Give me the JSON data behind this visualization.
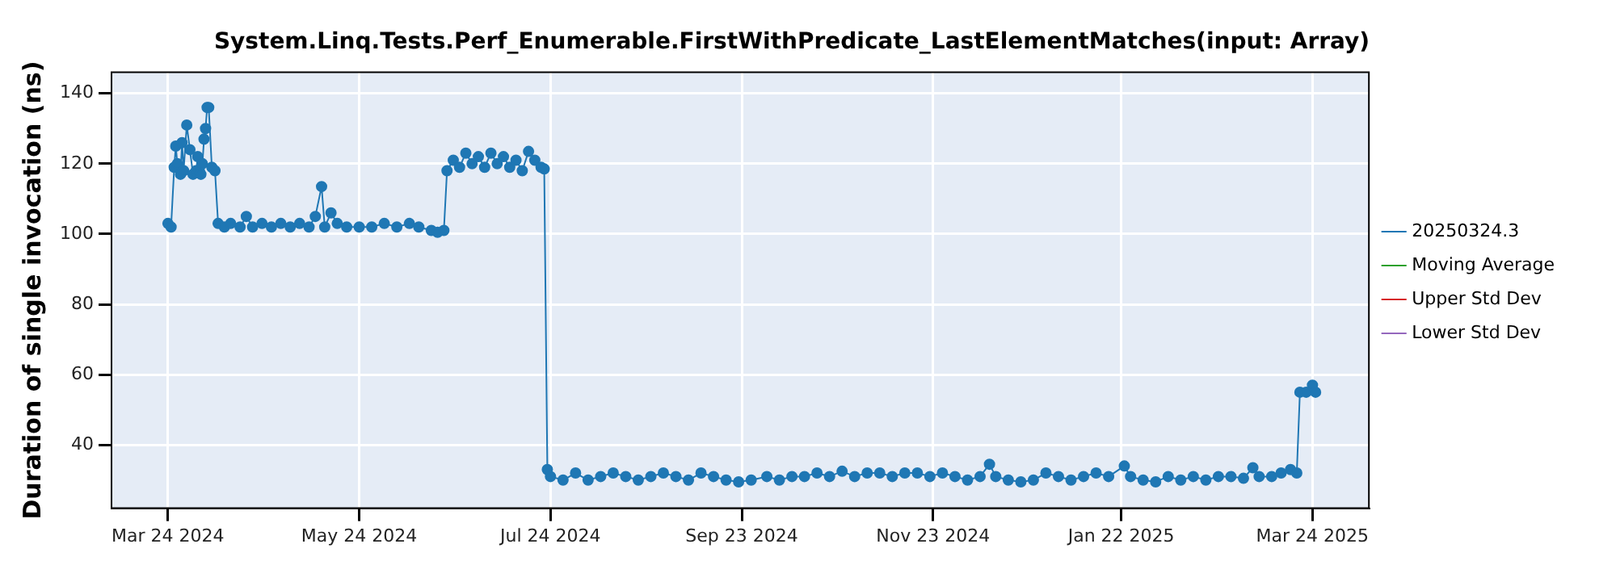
{
  "chart_data": {
    "type": "line",
    "title": "System.Linq.Tests.Perf_Enumerable.FirstWithPredicate_LastElementMatches(input: Array)",
    "ylabel": "Duration of single invocation (ns)",
    "xlim": [
      "2024-03-06",
      "2025-04-11"
    ],
    "xticks": [
      {
        "value": "2024-03-24",
        "label": "Mar 24 2024"
      },
      {
        "value": "2024-05-24",
        "label": "May 24 2024"
      },
      {
        "value": "2024-07-24",
        "label": "Jul 24 2024"
      },
      {
        "value": "2024-09-23",
        "label": "Sep 23 2024"
      },
      {
        "value": "2024-11-23",
        "label": "Nov 23 2024"
      },
      {
        "value": "2025-01-22",
        "label": "Jan 22 2025"
      },
      {
        "value": "2025-03-24",
        "label": "Mar 24 2025"
      }
    ],
    "ylim": [
      22,
      146
    ],
    "yticks": [
      40,
      60,
      80,
      100,
      120,
      140
    ],
    "grid": true,
    "legend": "right",
    "marker": "circle",
    "line_style": "solid",
    "series": [
      {
        "name": "20250324.3",
        "color": "#1f77b4",
        "x": [
          "2024-03-24",
          "2024-03-25",
          "2024-03-26",
          "2024-03-26T12:00",
          "2024-03-27",
          "2024-03-28",
          "2024-03-28T12:00",
          "2024-03-29",
          "2024-03-30",
          "2024-03-31",
          "2024-04-01",
          "2024-04-02",
          "2024-04-02T12:00",
          "2024-04-03",
          "2024-04-03T12:00",
          "2024-04-04",
          "2024-04-04T12:00",
          "2024-04-05",
          "2024-04-05T12:00",
          "2024-04-06",
          "2024-04-07",
          "2024-04-08",
          "2024-04-09",
          "2024-04-11",
          "2024-04-13",
          "2024-04-16",
          "2024-04-18",
          "2024-04-20",
          "2024-04-23",
          "2024-04-26",
          "2024-04-29",
          "2024-05-02",
          "2024-05-05",
          "2024-05-08",
          "2024-05-10",
          "2024-05-12",
          "2024-05-13",
          "2024-05-15",
          "2024-05-17",
          "2024-05-20",
          "2024-05-24",
          "2024-05-28",
          "2024-06-01",
          "2024-06-05",
          "2024-06-09",
          "2024-06-12",
          "2024-06-16",
          "2024-06-18",
          "2024-06-20",
          "2024-06-21",
          "2024-06-23",
          "2024-06-25",
          "2024-06-27",
          "2024-06-29",
          "2024-07-01",
          "2024-07-03",
          "2024-07-05",
          "2024-07-07",
          "2024-07-09",
          "2024-07-11",
          "2024-07-13",
          "2024-07-15",
          "2024-07-17",
          "2024-07-19",
          "2024-07-21",
          "2024-07-22",
          "2024-07-23",
          "2024-07-24",
          "2024-07-28",
          "2024-08-01",
          "2024-08-05",
          "2024-08-09",
          "2024-08-13",
          "2024-08-17",
          "2024-08-21",
          "2024-08-25",
          "2024-08-29",
          "2024-09-02",
          "2024-09-06",
          "2024-09-10",
          "2024-09-14",
          "2024-09-18",
          "2024-09-22",
          "2024-09-26",
          "2024-10-01",
          "2024-10-05",
          "2024-10-09",
          "2024-10-13",
          "2024-10-17",
          "2024-10-21",
          "2024-10-25",
          "2024-10-29",
          "2024-11-02",
          "2024-11-06",
          "2024-11-10",
          "2024-11-14",
          "2024-11-18",
          "2024-11-22",
          "2024-11-26",
          "2024-11-30",
          "2024-12-04",
          "2024-12-08",
          "2024-12-11",
          "2024-12-13",
          "2024-12-17",
          "2024-12-21",
          "2024-12-25",
          "2024-12-29",
          "2025-01-02",
          "2025-01-06",
          "2025-01-10",
          "2025-01-14",
          "2025-01-18",
          "2025-01-23",
          "2025-01-25",
          "2025-01-29",
          "2025-02-02",
          "2025-02-06",
          "2025-02-10",
          "2025-02-14",
          "2025-02-18",
          "2025-02-22",
          "2025-02-26",
          "2025-03-02",
          "2025-03-05",
          "2025-03-07",
          "2025-03-11",
          "2025-03-14",
          "2025-03-17",
          "2025-03-19",
          "2025-03-20",
          "2025-03-22",
          "2025-03-24",
          "2025-03-25"
        ],
        "values": [
          103,
          102,
          119,
          125,
          120,
          117,
          126,
          118,
          131,
          124,
          117,
          118,
          122,
          118,
          117,
          120,
          127,
          130,
          136,
          136,
          119,
          118,
          103,
          102,
          103,
          102,
          105,
          102,
          103,
          102,
          103,
          102,
          103,
          102,
          105,
          113.5,
          102,
          106,
          103,
          102,
          102,
          102,
          103,
          102,
          103,
          102,
          101,
          100.5,
          101,
          118,
          121,
          119,
          123,
          120,
          122,
          119,
          123,
          120,
          122,
          119,
          121,
          118,
          123.5,
          121,
          119,
          118.5,
          33,
          31,
          30,
          32,
          30,
          31,
          32,
          31,
          30,
          31,
          32,
          31,
          30,
          32,
          31,
          30,
          29.5,
          30,
          31,
          30,
          31,
          31,
          32,
          31,
          32.5,
          31,
          32,
          32,
          31,
          32,
          32,
          31,
          32,
          31,
          30,
          31,
          34.5,
          31,
          30,
          29.5,
          30,
          32,
          31,
          30,
          31,
          32,
          31,
          34,
          31,
          30,
          29.5,
          31,
          30,
          31,
          30,
          31,
          31,
          30.5,
          33.5,
          31,
          31,
          32,
          33,
          32,
          55,
          55,
          57,
          55
        ]
      },
      {
        "name": "Moving Average",
        "color": "#2ca02c"
      },
      {
        "name": "Upper Std Dev",
        "color": "#d62728"
      },
      {
        "name": "Lower Std Dev",
        "color": "#9467bd"
      }
    ]
  }
}
